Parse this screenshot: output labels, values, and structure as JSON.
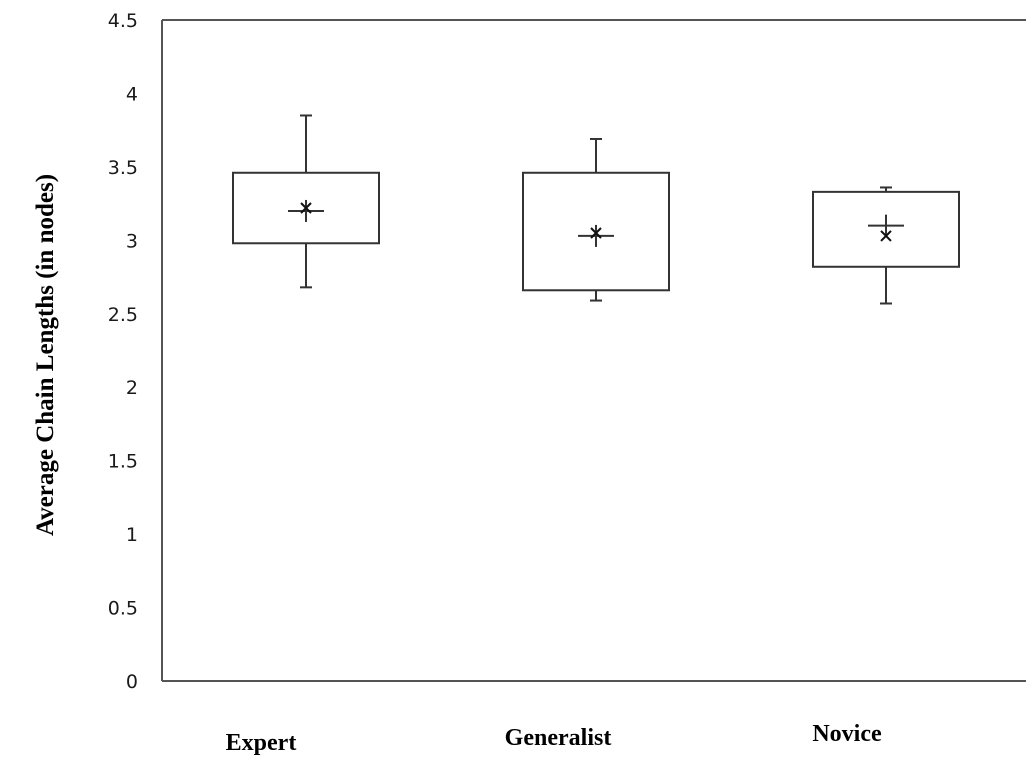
{
  "chart_data": {
    "type": "boxplot",
    "title": "",
    "xlabel": "",
    "ylabel": "Average Chain Lengths (in nodes)",
    "ylim": [
      0,
      4.5
    ],
    "yticks": [
      "0",
      "0.5",
      "1",
      "1.5",
      "2",
      "2.5",
      "3",
      "3.5",
      "4",
      "4.5"
    ],
    "grid": false,
    "legend": "none",
    "categories": [
      "Expert",
      "Generalist",
      "Novice"
    ],
    "boxes": [
      {
        "category": "Expert",
        "min": 2.68,
        "q1": 2.98,
        "median": 3.2,
        "q3": 3.46,
        "max": 3.85,
        "mean": 3.22
      },
      {
        "category": "Generalist",
        "min": 2.59,
        "q1": 2.66,
        "median": 3.03,
        "q3": 3.46,
        "max": 3.69,
        "mean": 3.05
      },
      {
        "category": "Novice",
        "min": 2.57,
        "q1": 2.82,
        "median": 3.1,
        "q3": 3.33,
        "max": 3.36,
        "mean": 3.03
      }
    ]
  }
}
